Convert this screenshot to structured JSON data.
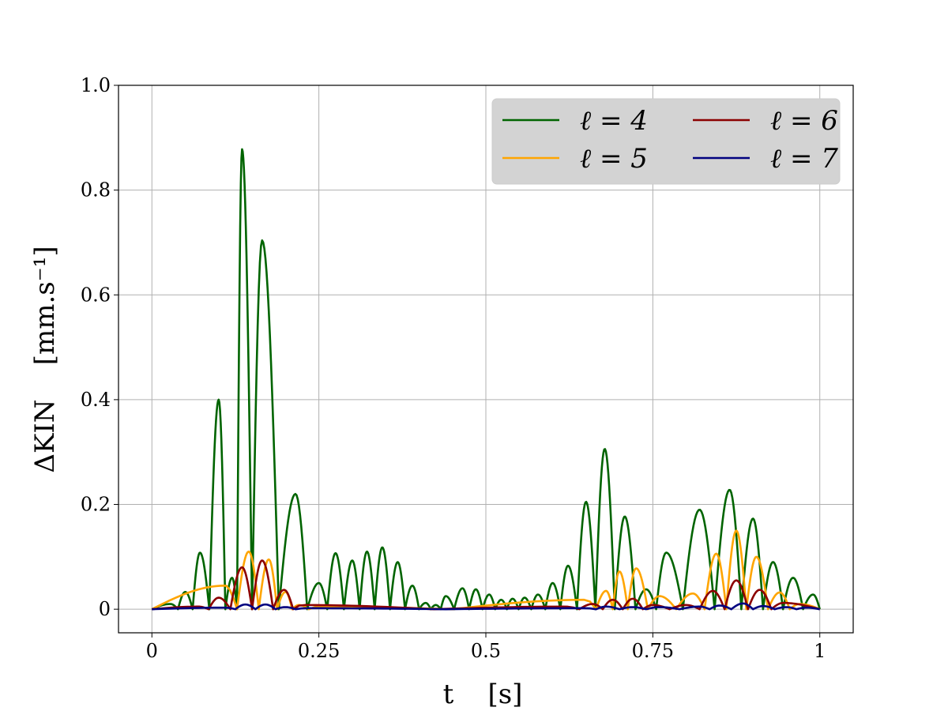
{
  "chart_data": {
    "type": "line",
    "xlabel": "t    [s]",
    "ylabel": "ΔKIN    [mm.s⁻¹]",
    "xlim": [
      -0.05,
      1.05
    ],
    "ylim": [
      -0.045,
      1.0
    ],
    "xticks": [
      0,
      0.25,
      0.5,
      0.75,
      1
    ],
    "xtick_labels": [
      "0",
      "0.25",
      "0.5",
      "0.75",
      "1"
    ],
    "yticks": [
      0,
      0.2,
      0.4,
      0.6,
      0.8,
      1.0
    ],
    "ytick_labels": [
      "0",
      "0.2",
      "0.4",
      "0.6",
      "0.8",
      "1.0"
    ],
    "grid": true,
    "legend_position": "top-right",
    "legend_columns": 2,
    "series": [
      {
        "name": "ℓ = 4",
        "color": "#006400",
        "peaks": [
          [
            0.028,
            0.01
          ],
          [
            0.05,
            0.033
          ],
          [
            0.072,
            0.108
          ],
          [
            0.1,
            0.4
          ],
          [
            0.12,
            0.06
          ],
          [
            0.135,
            0.878
          ],
          [
            0.165,
            0.704
          ],
          [
            0.215,
            0.22
          ],
          [
            0.25,
            0.05
          ],
          [
            0.275,
            0.107
          ],
          [
            0.3,
            0.093
          ],
          [
            0.322,
            0.11
          ],
          [
            0.345,
            0.118
          ],
          [
            0.368,
            0.09
          ],
          [
            0.39,
            0.045
          ],
          [
            0.41,
            0.012
          ],
          [
            0.425,
            0.008
          ],
          [
            0.44,
            0.025
          ],
          [
            0.465,
            0.04
          ],
          [
            0.485,
            0.038
          ],
          [
            0.505,
            0.028
          ],
          [
            0.523,
            0.018
          ],
          [
            0.54,
            0.02
          ],
          [
            0.558,
            0.022
          ],
          [
            0.578,
            0.028
          ],
          [
            0.6,
            0.05
          ],
          [
            0.623,
            0.083
          ],
          [
            0.65,
            0.205
          ],
          [
            0.678,
            0.306
          ],
          [
            0.708,
            0.177
          ],
          [
            0.74,
            0.038
          ],
          [
            0.77,
            0.108
          ],
          [
            0.82,
            0.19
          ],
          [
            0.865,
            0.228
          ],
          [
            0.9,
            0.173
          ],
          [
            0.93,
            0.09
          ],
          [
            0.96,
            0.06
          ],
          [
            0.99,
            0.028
          ]
        ]
      },
      {
        "name": "ℓ = 5",
        "color": "#FFA500",
        "peaks": [
          [
            0.11,
            0.045
          ],
          [
            0.145,
            0.11
          ],
          [
            0.175,
            0.095
          ],
          [
            0.2,
            0.033
          ],
          [
            0.22,
            0.008
          ],
          [
            0.25,
            0.005
          ],
          [
            0.65,
            0.018
          ],
          [
            0.68,
            0.035
          ],
          [
            0.7,
            0.072
          ],
          [
            0.725,
            0.078
          ],
          [
            0.76,
            0.025
          ],
          [
            0.81,
            0.03
          ],
          [
            0.845,
            0.106
          ],
          [
            0.875,
            0.15
          ],
          [
            0.905,
            0.1
          ],
          [
            0.94,
            0.032
          ],
          [
            0.97,
            0.01
          ]
        ]
      },
      {
        "name": "ℓ = 6",
        "color": "#8B0000",
        "peaks": [
          [
            0.07,
            0.005
          ],
          [
            0.1,
            0.022
          ],
          [
            0.135,
            0.08
          ],
          [
            0.165,
            0.093
          ],
          [
            0.198,
            0.037
          ],
          [
            0.225,
            0.008
          ],
          [
            0.62,
            0.005
          ],
          [
            0.66,
            0.01
          ],
          [
            0.69,
            0.018
          ],
          [
            0.72,
            0.02
          ],
          [
            0.75,
            0.008
          ],
          [
            0.8,
            0.008
          ],
          [
            0.84,
            0.035
          ],
          [
            0.875,
            0.055
          ],
          [
            0.91,
            0.037
          ],
          [
            0.945,
            0.012
          ]
        ]
      },
      {
        "name": "ℓ = 7",
        "color": "#00007F",
        "peaks": [
          [
            0.11,
            0.003
          ],
          [
            0.14,
            0.009
          ],
          [
            0.17,
            0.009
          ],
          [
            0.2,
            0.004
          ],
          [
            0.23,
            0.002
          ],
          [
            0.65,
            0.002
          ],
          [
            0.68,
            0.005
          ],
          [
            0.72,
            0.004
          ],
          [
            0.76,
            0.004
          ],
          [
            0.82,
            0.005
          ],
          [
            0.85,
            0.007
          ],
          [
            0.885,
            0.011
          ],
          [
            0.915,
            0.006
          ],
          [
            0.95,
            0.004
          ],
          [
            0.98,
            0.003
          ]
        ]
      }
    ]
  }
}
